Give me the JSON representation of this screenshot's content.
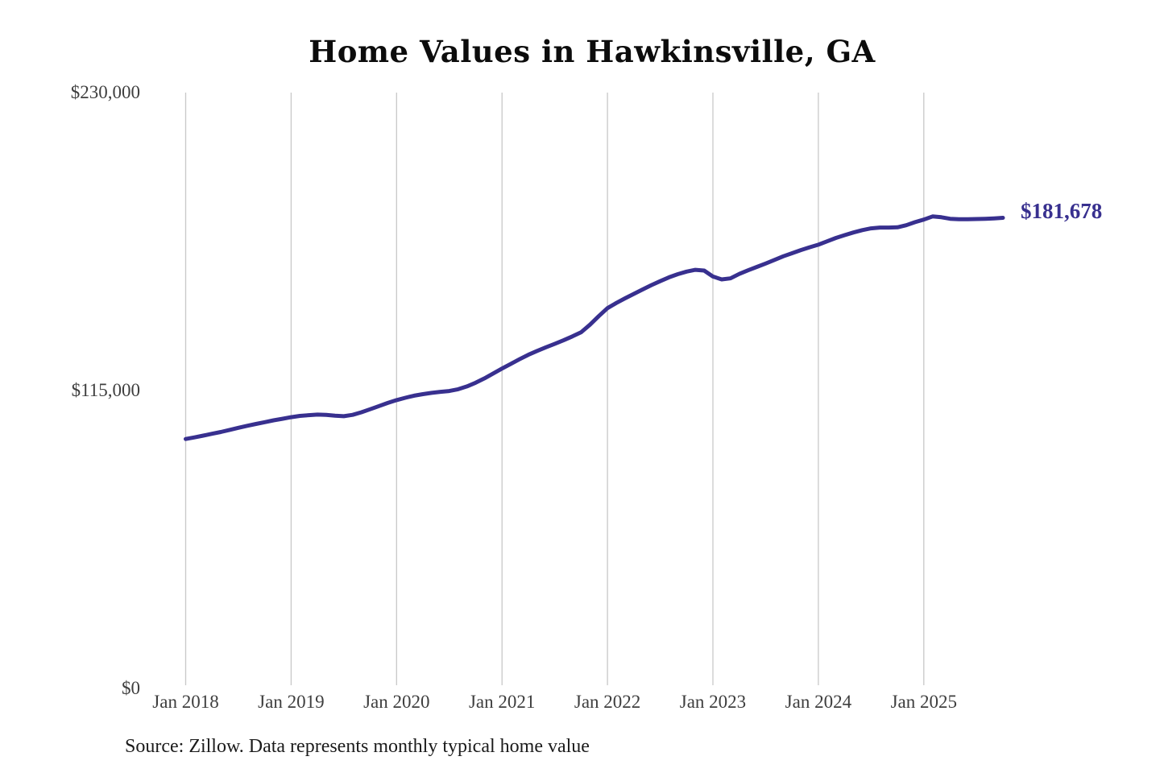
{
  "chart": {
    "title": "Home Values in Hawkinsville, GA",
    "source_note": "Source: Zillow. Data represents monthly typical home value",
    "end_label": "$181,678",
    "line_color": "#38308f",
    "grid_color": "#c8c8c8"
  },
  "chart_data": {
    "type": "line",
    "title": "Home Values in Hawkinsville, GA",
    "xlabel": "",
    "ylabel": "",
    "ylim": [
      0,
      230000
    ],
    "grid": "vertical-only",
    "legend": "none",
    "y_ticks": [
      {
        "value": 0,
        "label": "$0"
      },
      {
        "value": 115000,
        "label": "$115,000"
      },
      {
        "value": 230000,
        "label": "$230,000"
      }
    ],
    "x_ticks": [
      "Jan 2018",
      "Jan 2019",
      "Jan 2020",
      "Jan 2021",
      "Jan 2022",
      "Jan 2023",
      "Jan 2024",
      "Jan 2025"
    ],
    "x": [
      "2018-01",
      "2018-02",
      "2018-03",
      "2018-04",
      "2018-05",
      "2018-06",
      "2018-07",
      "2018-08",
      "2018-09",
      "2018-10",
      "2018-11",
      "2018-12",
      "2019-01",
      "2019-02",
      "2019-03",
      "2019-04",
      "2019-05",
      "2019-06",
      "2019-07",
      "2019-08",
      "2019-09",
      "2019-10",
      "2019-11",
      "2019-12",
      "2020-01",
      "2020-02",
      "2020-03",
      "2020-04",
      "2020-05",
      "2020-06",
      "2020-07",
      "2020-08",
      "2020-09",
      "2020-10",
      "2020-11",
      "2020-12",
      "2021-01",
      "2021-02",
      "2021-03",
      "2021-04",
      "2021-05",
      "2021-06",
      "2021-07",
      "2021-08",
      "2021-09",
      "2021-10",
      "2021-11",
      "2021-12",
      "2022-01",
      "2022-02",
      "2022-03",
      "2022-04",
      "2022-05",
      "2022-06",
      "2022-07",
      "2022-08",
      "2022-09",
      "2022-10",
      "2022-11",
      "2022-12",
      "2023-01",
      "2023-02",
      "2023-03",
      "2023-04",
      "2023-05",
      "2023-06",
      "2023-07",
      "2023-08",
      "2023-09",
      "2023-10",
      "2023-11",
      "2023-12",
      "2024-01",
      "2024-02",
      "2024-03",
      "2024-04",
      "2024-05",
      "2024-06",
      "2024-07",
      "2024-08",
      "2024-09",
      "2024-10",
      "2024-11",
      "2024-12",
      "2025-01",
      "2025-02",
      "2025-03",
      "2025-04",
      "2025-05",
      "2025-06",
      "2025-07",
      "2025-08",
      "2025-09",
      "2025-10"
    ],
    "series": [
      {
        "name": "Monthly typical home value",
        "final_value": 181678,
        "values": [
          96300,
          96900,
          97600,
          98300,
          99000,
          99800,
          100600,
          101400,
          102100,
          102800,
          103500,
          104100,
          104700,
          105200,
          105500,
          105700,
          105600,
          105300,
          105100,
          105600,
          106600,
          107800,
          109000,
          110200,
          111300,
          112200,
          113000,
          113600,
          114100,
          114500,
          114800,
          115500,
          116600,
          118000,
          119700,
          121600,
          123500,
          125300,
          127100,
          128800,
          130300,
          131700,
          133000,
          134400,
          135900,
          137500,
          140400,
          143700,
          146800,
          148800,
          150600,
          152300,
          154000,
          155700,
          157200,
          158700,
          159900,
          160900,
          161600,
          161300,
          159000,
          157900,
          158300,
          160000,
          161400,
          162700,
          164000,
          165400,
          166800,
          168000,
          169200,
          170300,
          171300,
          172600,
          173900,
          175000,
          176000,
          176900,
          177600,
          177900,
          177900,
          178000,
          178800,
          180000,
          181000,
          182200,
          181900,
          181300,
          181100,
          181100,
          181200,
          181300,
          181450,
          181678
        ]
      }
    ]
  }
}
